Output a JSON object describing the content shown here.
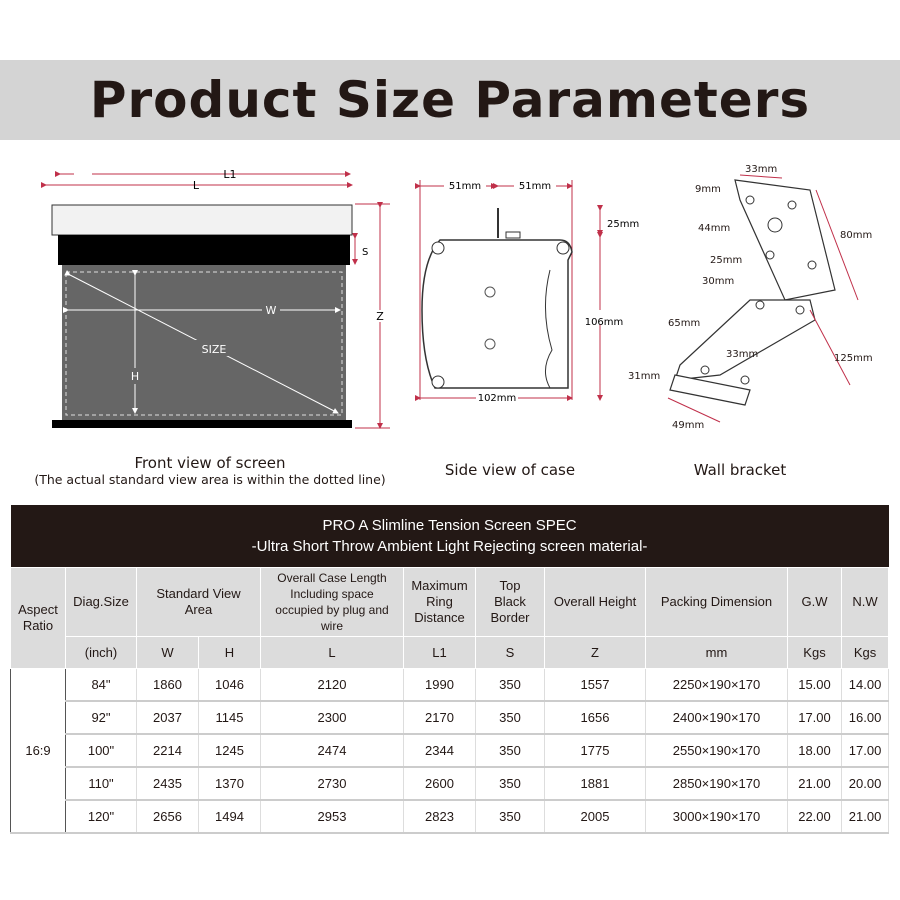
{
  "title": "Product Size Parameters",
  "front_view": {
    "labels": {
      "L1": "L1",
      "L": "L",
      "S": "S",
      "Z": "Z",
      "W": "W",
      "H": "H",
      "SIZE": "SIZE"
    },
    "caption": "Front view of screen",
    "note": "(The actual standard view area is within the dotted line)"
  },
  "side_view": {
    "labels": {
      "top_left": "51mm",
      "top_right": "51mm",
      "top_height": "25mm",
      "height": "106mm",
      "width": "102mm"
    },
    "caption": "Side view of case"
  },
  "wall_bracket": {
    "labels": {
      "top_width": "33mm",
      "a": "9mm",
      "b": "44mm",
      "c": "25mm",
      "d": "30mm",
      "e": "65mm",
      "f": "31mm",
      "height": "80mm",
      "length": "125mm",
      "mid_width": "33mm",
      "bottom": "49mm"
    },
    "caption": "Wall bracket"
  },
  "accent_color": "#c0304a",
  "table": {
    "title": "PRO A Slimline Tension Screen SPEC",
    "subtitle": "-Ultra Short Throw Ambient Light Rejecting screen material-",
    "headers": {
      "aspect": "Aspect Ratio",
      "diag": "Diag.Size",
      "view": "Standard View Area",
      "case": "Overall Case Length Including space occupied by plug and wire",
      "ring": "Maximum Ring Distance",
      "border": "Top Black Border",
      "height": "Overall Height",
      "packing": "Packing Dimension",
      "gw": "G.W",
      "nw": "N.W"
    },
    "units": [
      "(inch)",
      "W",
      "H",
      "L",
      "L1",
      "S",
      "Z",
      "mm",
      "Kgs",
      "Kgs"
    ],
    "aspect_ratio": "16:9",
    "rows": [
      [
        "84\"",
        "1860",
        "1046",
        "2120",
        "1990",
        "350",
        "1557",
        "2250×190×170",
        "15.00",
        "14.00"
      ],
      [
        "92\"",
        "2037",
        "1145",
        "2300",
        "2170",
        "350",
        "1656",
        "2400×190×170",
        "17.00",
        "16.00"
      ],
      [
        "100\"",
        "2214",
        "1245",
        "2474",
        "2344",
        "350",
        "1775",
        "2550×190×170",
        "18.00",
        "17.00"
      ],
      [
        "110\"",
        "2435",
        "1370",
        "2730",
        "2600",
        "350",
        "1881",
        "2850×190×170",
        "21.00",
        "20.00"
      ],
      [
        "120\"",
        "2656",
        "1494",
        "2953",
        "2823",
        "350",
        "2005",
        "3000×190×170",
        "22.00",
        "21.00"
      ]
    ]
  }
}
